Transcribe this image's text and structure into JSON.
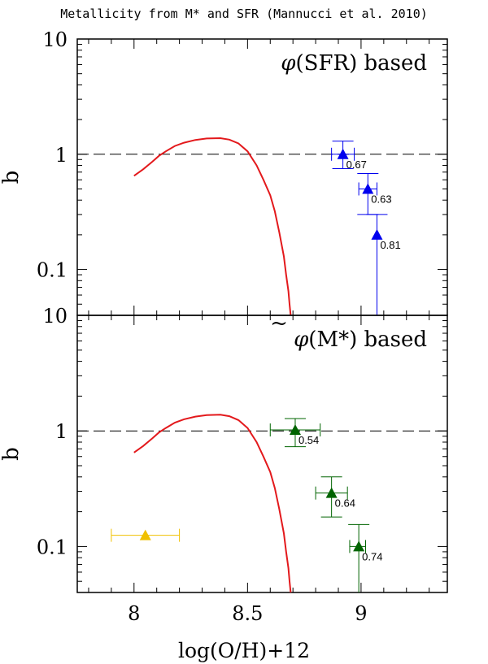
{
  "figure_title": "Metallicity from M* and SFR (Mannucci et al. 2010)",
  "colors": {
    "curve": "#e3191c",
    "sfr_points": "#0000ee",
    "mstar_points": "#006400",
    "extra_point": "#f0c000",
    "axis": "#000000",
    "reference_line": "#000000"
  },
  "chart_data": [
    {
      "type": "scatter",
      "panel": "top",
      "label_main": "(SFR) based",
      "label_symbol": "φ",
      "ylabel": "b",
      "xlabel": "",
      "yscale": "log",
      "xlim": [
        7.75,
        9.38
      ],
      "ylim": [
        0.04,
        10
      ],
      "yticks": [
        {
          "value": 10,
          "label": "10"
        },
        {
          "value": 1,
          "label": "1"
        },
        {
          "value": 0.1,
          "label": "0.1"
        }
      ],
      "xticks": [
        8,
        8.5,
        9
      ],
      "reference_line": {
        "y": 1,
        "style": "dashed"
      },
      "curve": {
        "name": "model",
        "x": [
          8.0,
          8.04,
          8.08,
          8.11,
          8.14,
          8.18,
          8.22,
          8.27,
          8.32,
          8.38,
          8.42,
          8.46,
          8.5,
          8.54,
          8.57,
          8.6,
          8.62,
          8.64,
          8.66,
          8.67,
          8.68,
          8.685,
          8.69
        ],
        "y": [
          0.65,
          0.74,
          0.86,
          0.97,
          1.06,
          1.18,
          1.26,
          1.33,
          1.37,
          1.38,
          1.34,
          1.24,
          1.06,
          0.8,
          0.6,
          0.44,
          0.32,
          0.21,
          0.13,
          0.09,
          0.065,
          0.05,
          0.04
        ]
      },
      "series": [
        {
          "name": "SFR-based points",
          "points": [
            {
              "x": 8.92,
              "y": 1.0,
              "xerr_lo": 0.05,
              "xerr_hi": 0.05,
              "y_lo": 0.75,
              "y_hi": 1.3,
              "label": "0.67"
            },
            {
              "x": 9.03,
              "y": 0.5,
              "xerr_lo": 0.04,
              "xerr_hi": 0.04,
              "y_lo": 0.3,
              "y_hi": 0.68,
              "label": "0.63"
            },
            {
              "x": 9.07,
              "y": 0.2,
              "xerr_lo": 0.0,
              "xerr_hi": 0.0,
              "y_lo": 0.04,
              "y_hi": 0.3,
              "label": "0.81"
            }
          ]
        }
      ]
    },
    {
      "type": "scatter",
      "panel": "bottom",
      "label_main": "(M*) based",
      "label_symbol": "φ",
      "label_accent": "~",
      "ylabel": "b",
      "xlabel": "log(O/H)+12",
      "yscale": "log",
      "xlim": [
        7.75,
        9.38
      ],
      "ylim": [
        0.04,
        10
      ],
      "yticks": [
        {
          "value": 10,
          "label": "10"
        },
        {
          "value": 1,
          "label": "1"
        },
        {
          "value": 0.1,
          "label": "0.1"
        }
      ],
      "xticks": [
        8,
        8.5,
        9
      ],
      "xticklabels": [
        "8",
        "8.5",
        "9"
      ],
      "reference_line": {
        "y": 1,
        "style": "dashed"
      },
      "curve": {
        "name": "model",
        "x": [
          8.0,
          8.04,
          8.08,
          8.11,
          8.14,
          8.18,
          8.22,
          8.27,
          8.32,
          8.38,
          8.42,
          8.46,
          8.5,
          8.54,
          8.57,
          8.6,
          8.62,
          8.64,
          8.66,
          8.67,
          8.68,
          8.685,
          8.69
        ],
        "y": [
          0.65,
          0.74,
          0.86,
          0.97,
          1.06,
          1.18,
          1.26,
          1.33,
          1.37,
          1.38,
          1.34,
          1.24,
          1.06,
          0.8,
          0.6,
          0.44,
          0.32,
          0.21,
          0.13,
          0.09,
          0.065,
          0.05,
          0.04
        ]
      },
      "series": [
        {
          "name": "M*-based points",
          "points": [
            {
              "x": 8.71,
              "y": 1.02,
              "xerr_lo": 0.11,
              "xerr_hi": 0.11,
              "y_lo": 0.73,
              "y_hi": 1.28,
              "label": "0.54"
            },
            {
              "x": 8.87,
              "y": 0.29,
              "xerr_lo": 0.07,
              "xerr_hi": 0.07,
              "y_lo": 0.18,
              "y_hi": 0.4,
              "label": "0.64"
            },
            {
              "x": 8.99,
              "y": 0.1,
              "xerr_lo": 0.04,
              "xerr_hi": 0.03,
              "y_lo": 0.04,
              "y_hi": 0.155,
              "label": "0.74"
            }
          ]
        },
        {
          "name": "extra point",
          "points": [
            {
              "x": 8.05,
              "y": 0.125,
              "xerr_lo": 0.15,
              "xerr_hi": 0.15,
              "y_lo": 0.125,
              "y_hi": 0.125,
              "label": ""
            }
          ]
        }
      ]
    }
  ]
}
